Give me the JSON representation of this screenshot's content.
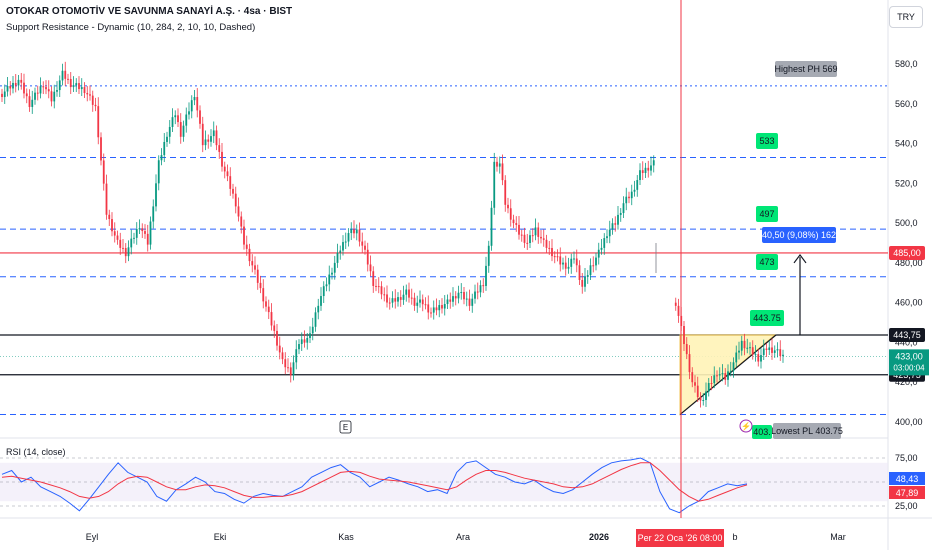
{
  "header": {
    "title": "OTOKAR OTOMOTİV VE SAVUNMA SANAYİ A.Ş. · 4sa · BIST",
    "indicator": "Support Resistance - Dynamic (10, 284, 2, 10, 10, Dashed)",
    "currency": "TRY"
  },
  "colors": {
    "up": "#089981",
    "down": "#f23645",
    "resistance": "#2962ff",
    "level_black": "#131722",
    "level_red": "#f23645",
    "triangle_fill": "#fff3b8",
    "triangle_stroke": "#f0c040",
    "rsi": "#2962ff",
    "rsi_ma": "#f23645",
    "label_green": "#00e676",
    "crosshair": "#f23645"
  },
  "chart_data": [
    {
      "type": "candlestick",
      "title": "",
      "x_ticks": [
        "Eyl",
        "Eki",
        "Kas",
        "Ara",
        "2026",
        "Şub",
        "Mar"
      ],
      "y_ticks": [
        "400,00",
        "420,0",
        "440,0",
        "460,00",
        "480,00",
        "500,0",
        "520,0",
        "540,0",
        "560,0",
        "580,0"
      ],
      "ylim": [
        395,
        590
      ],
      "price_path": [
        [
          0,
          565
        ],
        [
          6,
          572
        ],
        [
          10,
          560
        ],
        [
          15,
          570
        ],
        [
          18,
          562
        ],
        [
          22,
          575
        ],
        [
          25,
          570
        ],
        [
          30,
          567
        ],
        [
          34,
          558
        ],
        [
          38,
          505
        ],
        [
          42,
          490
        ],
        [
          45,
          485
        ],
        [
          50,
          499
        ],
        [
          53,
          490
        ],
        [
          57,
          530
        ],
        [
          60,
          545
        ],
        [
          63,
          555
        ],
        [
          65,
          545
        ],
        [
          70,
          565
        ],
        [
          73,
          540
        ],
        [
          77,
          545
        ],
        [
          80,
          530
        ],
        [
          85,
          510
        ],
        [
          88,
          490
        ],
        [
          92,
          475
        ],
        [
          96,
          458
        ],
        [
          99,
          445
        ],
        [
          102,
          430
        ],
        [
          105,
          425
        ],
        [
          108,
          440
        ],
        [
          112,
          443
        ],
        [
          115,
          460
        ],
        [
          118,
          470
        ],
        [
          121,
          480
        ],
        [
          123,
          487
        ],
        [
          126,
          495
        ],
        [
          129,
          496
        ],
        [
          132,
          485
        ],
        [
          135,
          470
        ],
        [
          138,
          465
        ],
        [
          141,
          460
        ],
        [
          144,
          462
        ],
        [
          147,
          465
        ],
        [
          150,
          460
        ],
        [
          153,
          460
        ],
        [
          156,
          455
        ],
        [
          159,
          458
        ],
        [
          162,
          460
        ],
        [
          166,
          465
        ],
        [
          170,
          460
        ],
        [
          175,
          470
        ],
        [
          177,
          487
        ],
        [
          179,
          530
        ],
        [
          181,
          530
        ],
        [
          183,
          510
        ],
        [
          186,
          500
        ],
        [
          188,
          495
        ],
        [
          191,
          490
        ],
        [
          194,
          497
        ],
        [
          197,
          490
        ],
        [
          200,
          485
        ],
        [
          203,
          480
        ],
        [
          206,
          478
        ],
        [
          208,
          483
        ],
        [
          211,
          468
        ],
        [
          214,
          478
        ],
        [
          217,
          485
        ],
        [
          220,
          495
        ],
        [
          223,
          500
        ],
        [
          226,
          510
        ],
        [
          229,
          515
        ],
        [
          232,
          525
        ],
        [
          235,
          528
        ],
        [
          237,
          530
        ]
      ],
      "drop_path": [
        [
          245,
          460
        ],
        [
          248,
          440
        ],
        [
          251,
          420
        ],
        [
          254,
          410
        ],
        [
          257,
          418
        ],
        [
          260,
          425
        ],
        [
          263,
          422
        ],
        [
          266,
          430
        ],
        [
          269,
          440
        ],
        [
          272,
          436
        ],
        [
          275,
          432
        ],
        [
          278,
          437
        ],
        [
          281,
          436
        ],
        [
          284,
          433
        ]
      ],
      "current_price": "433,00",
      "countdown": "03:00:04",
      "levels": [
        {
          "value": 569,
          "style": "dotted",
          "label": "Highest PH 569"
        },
        {
          "value": 533,
          "style": "dashed",
          "label": "533"
        },
        {
          "value": 497,
          "style": "dashed",
          "label": "497"
        },
        {
          "value": 473,
          "style": "dashed",
          "label": "473"
        },
        {
          "value": 443.75,
          "style": "solid-black",
          "label": "443.75",
          "axis": "443,75"
        },
        {
          "value": 423.75,
          "style": "solid-black",
          "axis": "423,75"
        },
        {
          "value": 485,
          "style": "solid-red",
          "axis": "485,00"
        },
        {
          "value": 403.75,
          "style": "dashed",
          "label": "Lowest PL 403.75",
          "small": "403."
        }
      ],
      "measure": {
        "label": "40,50 (9,08%) 162"
      },
      "annotation": "E"
    },
    {
      "type": "line",
      "title": "RSI (14, close)",
      "y_ticks": [
        "25,00",
        "75,00"
      ],
      "ylim": [
        15,
        85
      ],
      "series": [
        {
          "values_rsi": [
            58,
            62,
            50,
            55,
            45,
            40,
            35,
            28,
            20,
            32,
            45,
            58,
            70,
            60,
            55,
            50,
            35,
            30,
            42,
            48,
            55,
            50,
            40,
            38,
            32,
            28,
            35,
            38,
            36,
            35,
            40,
            45,
            55,
            60,
            65,
            68,
            60,
            55,
            45,
            50,
            55,
            52,
            48,
            45,
            40,
            42,
            38,
            60,
            70,
            72,
            65,
            58,
            55,
            50,
            48,
            52,
            45,
            40,
            38,
            42,
            50,
            58,
            65,
            70,
            72,
            73,
            75,
            70,
            40,
            22,
            18,
            25,
            30,
            40,
            44,
            48,
            46,
            48
          ]
        },
        {
          "values_ma": [
            55,
            56,
            54,
            52,
            50,
            47,
            44,
            40,
            35,
            33,
            35,
            40,
            48,
            54,
            56,
            55,
            50,
            45,
            42,
            42,
            45,
            47,
            46,
            44,
            40,
            36,
            34,
            34,
            35,
            35,
            37,
            40,
            45,
            50,
            55,
            60,
            61,
            60,
            56,
            53,
            52,
            51,
            50,
            48,
            46,
            44,
            42,
            45,
            52,
            58,
            62,
            62,
            60,
            57,
            54,
            52,
            50,
            48,
            45,
            44,
            45,
            48,
            53,
            58,
            63,
            67,
            70,
            70,
            62,
            52,
            42,
            35,
            30,
            32,
            36,
            40,
            44,
            47
          ]
        }
      ],
      "current_values": [
        "48,43",
        "47,89"
      ]
    }
  ],
  "crosshair": {
    "date_label": "Per 22 Oca '26   08:00"
  }
}
